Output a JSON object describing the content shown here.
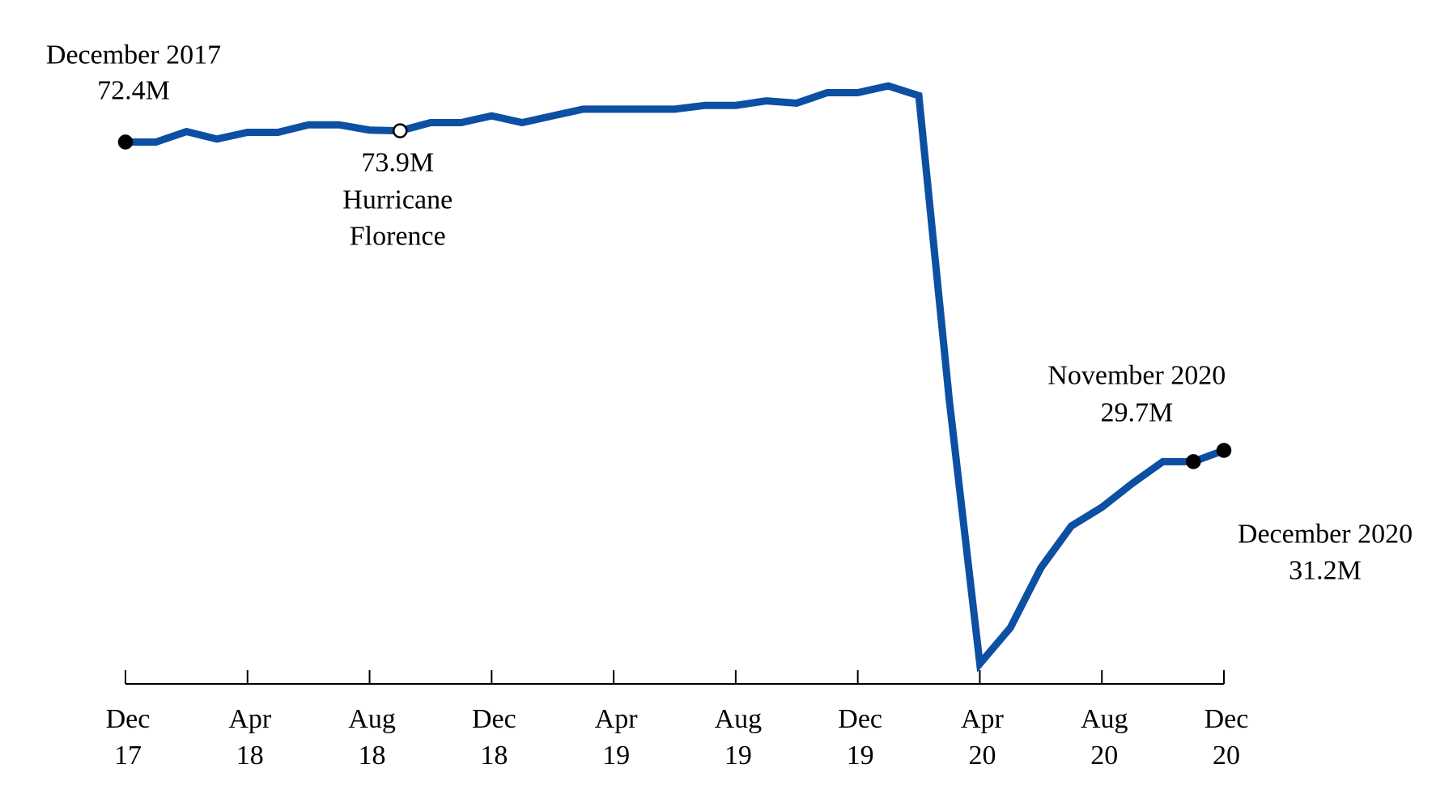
{
  "chart_data": {
    "type": "line",
    "categories": [
      "Dec\n17",
      null,
      null,
      null,
      "Apr\n18",
      null,
      null,
      null,
      "Aug\n18",
      null,
      null,
      null,
      "Dec\n18",
      null,
      null,
      null,
      "Apr\n19",
      null,
      null,
      null,
      "Aug\n19",
      null,
      null,
      null,
      "Dec\n19",
      null,
      null,
      null,
      "Apr\n20",
      null,
      null,
      null,
      "Aug\n20",
      null,
      null,
      null,
      "Dec\n20"
    ],
    "values": [
      72.4,
      72.4,
      73.8,
      72.8,
      73.7,
      73.7,
      74.7,
      74.7,
      74.0,
      73.9,
      75.0,
      75.0,
      75.9,
      75.0,
      75.9,
      76.8,
      76.8,
      76.8,
      76.8,
      77.3,
      77.3,
      77.9,
      77.6,
      79.0,
      79.0,
      79.9,
      78.6,
      37.9,
      2.7,
      7.5,
      15.5,
      21.1,
      23.6,
      26.8,
      29.7,
      29.7,
      31.2
    ],
    "value_labels": [
      "72.4M",
      null,
      null,
      null,
      null,
      null,
      null,
      null,
      null,
      "73.9M",
      null,
      null,
      null,
      null,
      null,
      null,
      null,
      null,
      null,
      null,
      null,
      null,
      null,
      null,
      null,
      null,
      null,
      null,
      null,
      null,
      null,
      null,
      null,
      null,
      null,
      "29.7M",
      "31.2M"
    ],
    "point_labels": [
      "December 2017",
      null,
      null,
      null,
      null,
      null,
      null,
      null,
      null,
      "Hurricane\nFlorence",
      null,
      null,
      null,
      null,
      null,
      null,
      null,
      null,
      null,
      null,
      null,
      null,
      null,
      null,
      null,
      null,
      null,
      null,
      null,
      null,
      null,
      null,
      null,
      null,
      null,
      "November 2020",
      "December 2020"
    ],
    "markers": [
      "filled",
      null,
      null,
      null,
      null,
      null,
      null,
      null,
      null,
      "hollow",
      null,
      null,
      null,
      null,
      null,
      null,
      null,
      null,
      null,
      null,
      null,
      null,
      null,
      null,
      null,
      null,
      null,
      null,
      null,
      null,
      null,
      null,
      null,
      null,
      null,
      "filled",
      "filled"
    ],
    "color": "#0c4fa3",
    "ylim": [
      0,
      85
    ]
  }
}
